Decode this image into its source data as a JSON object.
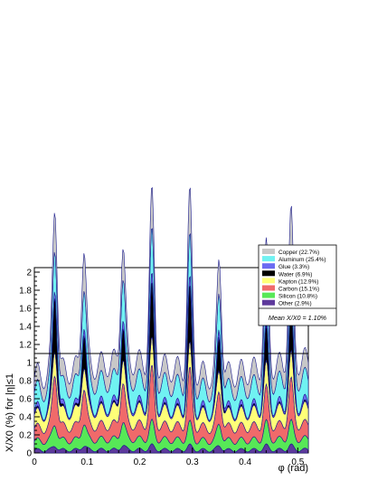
{
  "chart_data": {
    "type": "area",
    "xlabel": "φ (rad)",
    "ylabel": "X/X0 (%) for |η|≤1",
    "xlim": [
      0,
      0.52
    ],
    "ylim": [
      0,
      2.05
    ],
    "x_ticks": [
      "0",
      "0.1",
      "0.2",
      "0.3",
      "0.4",
      "0.5"
    ],
    "y_ticks": [
      "0",
      "0.2",
      "0.4",
      "0.6",
      "0.8",
      "1",
      "1.2",
      "1.4",
      "1.6",
      "1.8",
      "2"
    ],
    "grid": false,
    "stacked": true,
    "legend_position": "top-right",
    "mean_line": {
      "label": "Mean X/X0 = 1.10%",
      "value": 1.1
    },
    "peaks_x": [
      0.039,
      0.094,
      0.168,
      0.223,
      0.295,
      0.351,
      0.44,
      0.487
    ],
    "series": [
      {
        "name": "Other (2.9%)",
        "color": "#5e3a9c",
        "base_values": [
          0.03,
          0.035,
          0.03,
          0.035
        ],
        "peak_values": [
          0.05,
          0.05,
          0.05,
          0.05,
          0.05,
          0.05,
          0.05,
          0.05
        ]
      },
      {
        "name": "Silicon (10.8%)",
        "color": "#57e857",
        "base_values": [
          0.1,
          0.12,
          0.1,
          0.12
        ],
        "peak_values": [
          0.14,
          0.14,
          0.14,
          0.14,
          0.14,
          0.14,
          0.14,
          0.14
        ]
      },
      {
        "name": "Carbon (15.1%)",
        "color": "#f06a6a",
        "base_values": [
          0.14,
          0.16,
          0.14,
          0.16
        ],
        "peak_values": [
          0.42,
          0.25,
          0.28,
          0.43,
          0.43,
          0.22,
          0.22,
          0.3
        ]
      },
      {
        "name": "Kapton (12.9%)",
        "color": "#ffff78",
        "base_values": [
          0.15,
          0.18,
          0.15,
          0.18
        ],
        "peak_values": [
          0.12,
          0.08,
          0.08,
          0.12,
          0.1,
          0.08,
          0.08,
          0.1
        ]
      },
      {
        "name": "Water (6.9%)",
        "color": "#000000",
        "base_values": [
          0.0,
          0.0,
          0.0,
          0.0
        ],
        "peak_values": [
          0.62,
          0.38,
          0.36,
          0.6,
          0.62,
          0.38,
          0.38,
          0.5
        ]
      },
      {
        "name": "Glue (3.3%)",
        "color": "#6b6bf2",
        "base_values": [
          0.03,
          0.04,
          0.03,
          0.04
        ],
        "peak_values": [
          0.05,
          0.05,
          0.05,
          0.05,
          0.05,
          0.05,
          0.05,
          0.05
        ]
      },
      {
        "name": "Aluminum (25.4%)",
        "color": "#70f2f2",
        "base_values": [
          0.22,
          0.28,
          0.22,
          0.28
        ],
        "peak_values": [
          0.22,
          0.18,
          0.18,
          0.22,
          0.22,
          0.18,
          0.18,
          0.2
        ]
      },
      {
        "name": "Copper (22.7%)",
        "color": "#c8c8c8",
        "base_values": [
          0.16,
          0.2,
          0.16,
          0.2
        ],
        "peak_values": [
          0.28,
          0.25,
          0.15,
          0.25,
          0.32,
          0.22,
          0.2,
          0.3
        ]
      }
    ]
  }
}
